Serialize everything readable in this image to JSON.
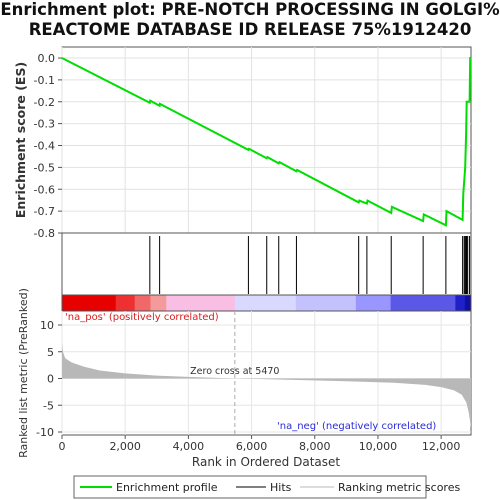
{
  "title_line1": "Enrichment plot: PRE-NOTCH PROCESSING IN GOLGI%",
  "title_line2": "REACTOME DATABASE ID RELEASE 75%1912420",
  "colors": {
    "enrichment_line": "#00dd00",
    "hit_line": "#000000",
    "ranking_fill": "#b8b8b8",
    "pos_label": "#d81e1e",
    "neg_label": "#2a2ad8",
    "heat_pos": [
      "#e60000",
      "#ee3030",
      "#f06868",
      "#f49a9a",
      "#f8bee4"
    ],
    "heat_neg": [
      "#d9d8ff",
      "#c3c2ff",
      "#9997ff",
      "#5b58e8",
      "#2020c8",
      "#1010a0"
    ]
  },
  "chart_data": [
    {
      "type": "line",
      "name": "enrichment",
      "ylabel": "Enrichment score (ES)",
      "ylim": [
        -0.8,
        0.0
      ],
      "yticks": [
        "0.0",
        "-0.1",
        "-0.2",
        "-0.3",
        "-0.4",
        "-0.5",
        "-0.6",
        "-0.7",
        "-0.8"
      ],
      "xlim": [
        0,
        12945
      ],
      "points": [
        [
          0,
          0.0
        ],
        [
          2780,
          -0.205
        ],
        [
          2790,
          -0.195
        ],
        [
          3090,
          -0.218
        ],
        [
          3100,
          -0.21
        ],
        [
          5900,
          -0.42
        ],
        [
          5920,
          -0.415
        ],
        [
          6480,
          -0.458
        ],
        [
          6500,
          -0.453
        ],
        [
          6860,
          -0.482
        ],
        [
          6880,
          -0.476
        ],
        [
          7420,
          -0.518
        ],
        [
          7440,
          -0.512
        ],
        [
          9390,
          -0.66
        ],
        [
          9410,
          -0.652
        ],
        [
          9650,
          -0.665
        ],
        [
          9670,
          -0.652
        ],
        [
          10420,
          -0.708
        ],
        [
          10440,
          -0.68
        ],
        [
          11430,
          -0.745
        ],
        [
          11450,
          -0.715
        ],
        [
          12150,
          -0.765
        ],
        [
          12170,
          -0.7
        ],
        [
          12680,
          -0.74
        ],
        [
          12700,
          -0.62
        ],
        [
          12760,
          -0.5
        ],
        [
          12790,
          -0.35
        ],
        [
          12810,
          -0.2
        ],
        [
          12900,
          -0.2
        ],
        [
          12920,
          0.0
        ],
        [
          12945,
          0.0
        ]
      ]
    },
    {
      "type": "hits",
      "name": "Hits",
      "x": [
        2780,
        3090,
        5900,
        6480,
        6860,
        7420,
        9390,
        9650,
        10420,
        11430,
        12150,
        12680,
        12730,
        12760,
        12790,
        12810,
        12840,
        12900
      ]
    },
    {
      "type": "area",
      "name": "Ranking metric scores",
      "ylabel": "Ranked list metric (PreRanked)",
      "xlabel": "Rank in Ordered Dataset",
      "xlim": [
        0,
        12945
      ],
      "ylim": [
        -10,
        7
      ],
      "yticks": [
        "10",
        "5",
        "0",
        "-5",
        "-10"
      ],
      "xticks": [
        "0",
        "2,000",
        "4,000",
        "6,000",
        "8,000",
        "10,000",
        "12,000"
      ],
      "points": [
        [
          0,
          6.8
        ],
        [
          30,
          5.0
        ],
        [
          100,
          3.8
        ],
        [
          300,
          3.0
        ],
        [
          700,
          2.2
        ],
        [
          1200,
          1.5
        ],
        [
          2000,
          0.95
        ],
        [
          3000,
          0.55
        ],
        [
          4000,
          0.3
        ],
        [
          5470,
          0.0
        ],
        [
          7000,
          -0.2
        ],
        [
          9000,
          -0.5
        ],
        [
          10500,
          -0.8
        ],
        [
          11500,
          -1.2
        ],
        [
          12000,
          -1.6
        ],
        [
          12400,
          -2.2
        ],
        [
          12650,
          -3.0
        ],
        [
          12800,
          -4.5
        ],
        [
          12880,
          -6.5
        ],
        [
          12945,
          -9.3
        ]
      ],
      "zero_cross_label": "Zero cross at 5470",
      "zero_cross": 5470,
      "pos_label": "'na_pos' (positively correlated)",
      "neg_label": "'na_neg' (negatively correlated)"
    }
  ],
  "legend": {
    "items": [
      "Enrichment profile",
      "Hits",
      "Ranking metric scores"
    ]
  }
}
